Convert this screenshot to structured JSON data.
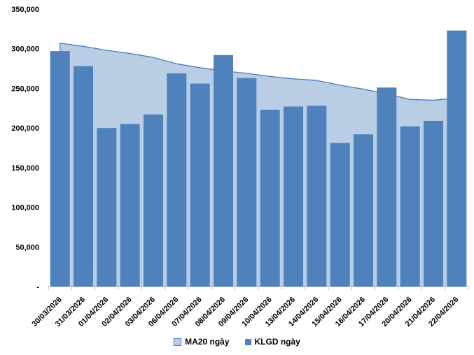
{
  "chart_data": {
    "type": "bar",
    "subtype": "bar-with-area-overlay",
    "title": "",
    "xlabel": "",
    "ylabel": "",
    "categories": [
      "30/03/2026",
      "31/03/2026",
      "01/04/2026",
      "02/04/2026",
      "03/04/2026",
      "06/04/2026",
      "07/04/2026",
      "08/04/2026",
      "09/04/2026",
      "10/04/2026",
      "13/04/2026",
      "14/04/2026",
      "15/04/2026",
      "16/04/2026",
      "17/04/2026",
      "20/04/2026",
      "21/04/2026",
      "22/04/2026"
    ],
    "series": [
      {
        "name": "MA20 ngày",
        "type": "area",
        "fill_color": "#B9CDE5",
        "line_color": "#4A7EBB",
        "values": [
          307000,
          303000,
          298000,
          294000,
          289000,
          281000,
          276000,
          272000,
          269000,
          265000,
          262000,
          260000,
          254000,
          249000,
          243000,
          236000,
          235000,
          238000
        ]
      },
      {
        "name": "KLGD ngày",
        "type": "bar",
        "fill_color": "#4F81BD",
        "values": [
          297000,
          278000,
          200000,
          205000,
          217000,
          269000,
          256000,
          292000,
          263000,
          223000,
          227000,
          228000,
          181000,
          192000,
          251000,
          202000,
          209000,
          323000
        ]
      }
    ],
    "ylim": [
      0,
      350000
    ],
    "ytick_step": 50000,
    "ytick_values": [
      0,
      50000,
      100000,
      150000,
      200000,
      250000,
      300000,
      350000
    ],
    "ytick_labels": [
      "-",
      "50,000",
      "100,000",
      "150,000",
      "200,000",
      "250,000",
      "300,000",
      "350,000"
    ],
    "x_label_rotation_deg": -45,
    "grid": false,
    "legend_position": "bottom",
    "axis_color": "#BFBFBF",
    "text_color": "#000000",
    "background_color": "#FFFFFF"
  }
}
